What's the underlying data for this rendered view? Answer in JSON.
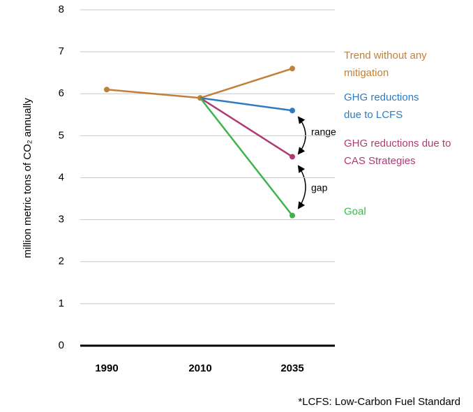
{
  "chart_data": {
    "type": "line",
    "y_label": "million metric tons of CO₂ annually",
    "categories": [
      "1990",
      "2010",
      "2035"
    ],
    "series": [
      {
        "name": "Trend without any mitigation",
        "color": "#c0803a",
        "values": [
          6.1,
          5.9,
          6.6
        ]
      },
      {
        "name": "GHG reductions due to LCFS",
        "color": "#2e7bbf",
        "values": [
          null,
          5.9,
          5.6
        ]
      },
      {
        "name": "GHG reductions due to CAS Strategies",
        "color": "#b03a72",
        "values": [
          null,
          5.9,
          4.5
        ]
      },
      {
        "name": "Goal",
        "color": "#3cb44b",
        "values": [
          null,
          5.9,
          3.1
        ]
      }
    ],
    "ylim": [
      0,
      8
    ],
    "yticks": [
      0,
      1,
      2,
      3,
      4,
      5,
      6,
      7,
      8
    ],
    "grid": true,
    "annotations": [
      "range",
      "gap"
    ],
    "footnote": "*LCFS: Low-Carbon Fuel Standard"
  }
}
